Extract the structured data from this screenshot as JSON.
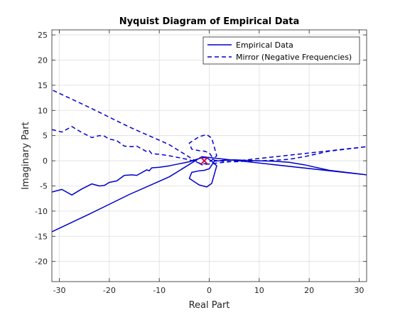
{
  "chart_data": {
    "type": "line",
    "title": "Nyquist Diagram of Empirical Data",
    "xlabel": "Real Part",
    "ylabel": "Imaginary Part",
    "xlim": [
      -31.5,
      31.5
    ],
    "ylim": [
      -24,
      26
    ],
    "xticks": [
      -30,
      -20,
      -10,
      0,
      10,
      20,
      30
    ],
    "yticks": [
      -20,
      -15,
      -10,
      -5,
      0,
      5,
      10,
      15,
      20,
      25
    ],
    "grid": true,
    "legend_position": "top-right",
    "colors": {
      "series": "#0000cc",
      "marker": "#cc0044"
    },
    "series": [
      {
        "name": "Empirical Data",
        "style": "solid",
        "x": [
          -31.5,
          -29.5,
          -27.5,
          -25.5,
          -23.5,
          -22,
          -21,
          -20,
          -18.5,
          -17,
          -15.5,
          -14.5,
          -12.5,
          -12,
          -11.5,
          -10,
          -8,
          -6,
          -4,
          -2.5,
          -1.5,
          -0.5,
          0.5,
          1.5,
          0.5,
          -0.5,
          -2,
          -4,
          -3.5,
          -2,
          -1,
          0,
          1,
          3,
          5,
          7,
          10,
          13,
          16,
          19,
          24,
          31.5,
          -1.5,
          -8,
          -16,
          -24,
          -31.5
        ],
        "y": [
          -6.2,
          -5.7,
          -6.8,
          -5.6,
          -4.6,
          -5.0,
          -4.9,
          -4.3,
          -4.0,
          -2.9,
          -2.8,
          -2.9,
          -1.8,
          -2.0,
          -1.4,
          -1.3,
          -1.0,
          -0.6,
          -0.2,
          0.3,
          0.6,
          0.6,
          -0.1,
          -1.0,
          -4.5,
          -5.2,
          -4.8,
          -3.5,
          -2.3,
          -2.0,
          -1.9,
          -1.6,
          -0.1,
          0.1,
          0.2,
          0.1,
          0.0,
          -0.1,
          -0.3,
          -0.8,
          -1.9,
          -2.8,
          0.8,
          -3.2,
          -6.7,
          -10.6,
          -14.1
        ]
      },
      {
        "name": "Mirror (Negative Frequencies)",
        "style": "dashed",
        "x": [
          -31.5,
          -29.5,
          -27.5,
          -25.5,
          -23.5,
          -22,
          -21,
          -20,
          -18.5,
          -17,
          -15.5,
          -14.5,
          -12.5,
          -12,
          -11.5,
          -10,
          -8,
          -6,
          -4,
          -2.5,
          -1.5,
          -0.5,
          0.5,
          1.5,
          0.5,
          -0.5,
          -2,
          -4,
          -3.5,
          -2,
          -1,
          0,
          1,
          3,
          5,
          7,
          10,
          13,
          16,
          19,
          24,
          31.5,
          -1.5,
          -8,
          -16,
          -24,
          -31.5
        ],
        "y": [
          6.2,
          5.7,
          6.8,
          5.6,
          4.6,
          5.0,
          4.9,
          4.3,
          4.0,
          2.9,
          2.8,
          2.9,
          1.8,
          2.0,
          1.4,
          1.3,
          1.0,
          0.6,
          0.2,
          -0.3,
          -0.6,
          -0.6,
          0.1,
          1.0,
          4.5,
          5.2,
          4.8,
          3.5,
          2.3,
          2.0,
          1.9,
          1.6,
          0.1,
          -0.1,
          -0.2,
          -0.1,
          0.0,
          0.1,
          0.3,
          0.8,
          1.9,
          2.8,
          -0.8,
          3.2,
          6.7,
          10.6,
          14.1
        ]
      }
    ],
    "annotations": [
      {
        "type": "x-marker",
        "x": -1,
        "y": 0
      }
    ]
  }
}
